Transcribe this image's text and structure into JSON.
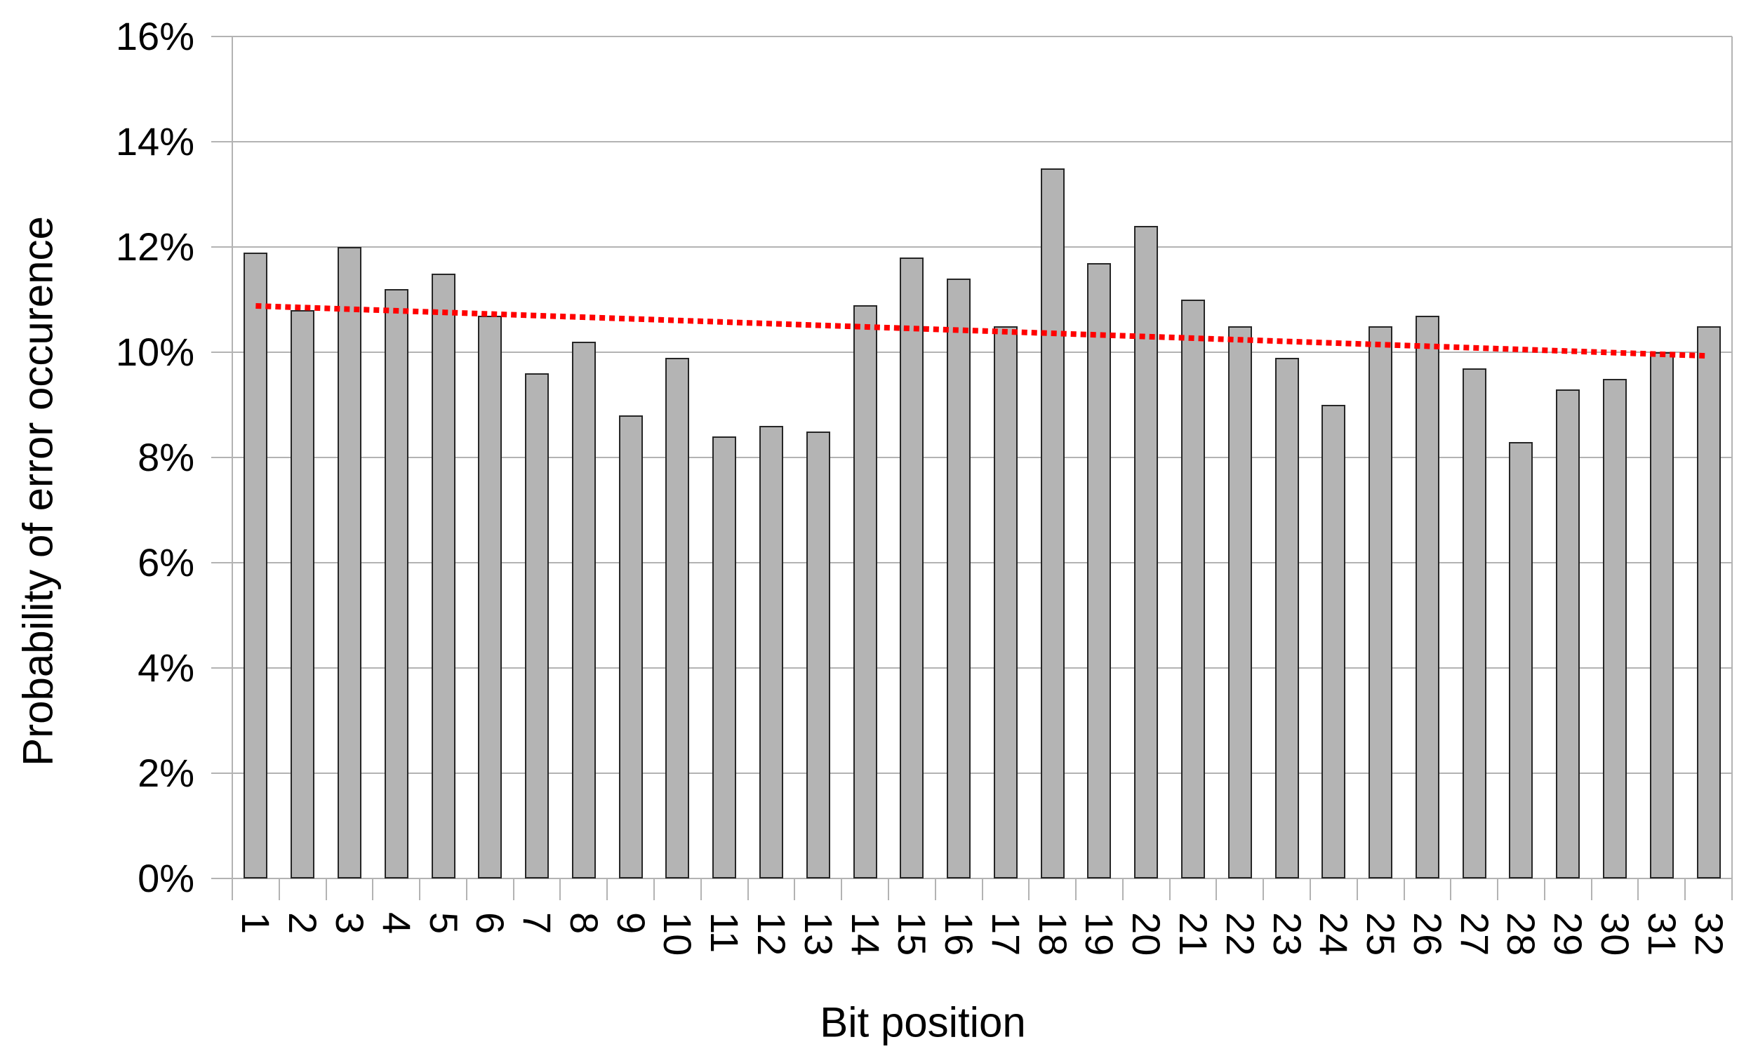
{
  "chart_data": {
    "type": "bar",
    "title": "",
    "xlabel": "Bit position",
    "ylabel": "Probability of error occurence",
    "categories": [
      "1",
      "2",
      "3",
      "4",
      "5",
      "6",
      "7",
      "8",
      "9",
      "10",
      "11",
      "12",
      "13",
      "14",
      "15",
      "16",
      "17",
      "18",
      "19",
      "20",
      "21",
      "22",
      "23",
      "24",
      "25",
      "26",
      "27",
      "28",
      "29",
      "30",
      "31",
      "32"
    ],
    "values": [
      11.9,
      10.8,
      12.0,
      11.2,
      11.5,
      10.7,
      9.6,
      10.2,
      8.8,
      9.9,
      8.4,
      8.6,
      8.5,
      10.9,
      11.8,
      11.4,
      10.5,
      13.5,
      11.7,
      12.4,
      11.0,
      10.5,
      9.9,
      9.0,
      10.5,
      10.7,
      9.7,
      8.3,
      9.3,
      9.5,
      10.0,
      10.5
    ],
    "value_unit": "%",
    "ylim": [
      0,
      16
    ],
    "ytick_step": 2,
    "ytick_labels": [
      "0%",
      "2%",
      "4%",
      "6%",
      "8%",
      "10%",
      "12%",
      "14%",
      "16%"
    ],
    "grid": true,
    "legend": "none",
    "colors": {
      "bar_fill": "#b4b4b4",
      "bar_border": "#262626",
      "grid": "#b3b3b3",
      "background": "#ffffff",
      "text": "#000000",
      "trend": "#ff0000"
    },
    "trendline": {
      "type": "linear",
      "style": "dotted",
      "color": "#ff0000",
      "start_value": 10.88,
      "end_value": 9.93
    }
  }
}
